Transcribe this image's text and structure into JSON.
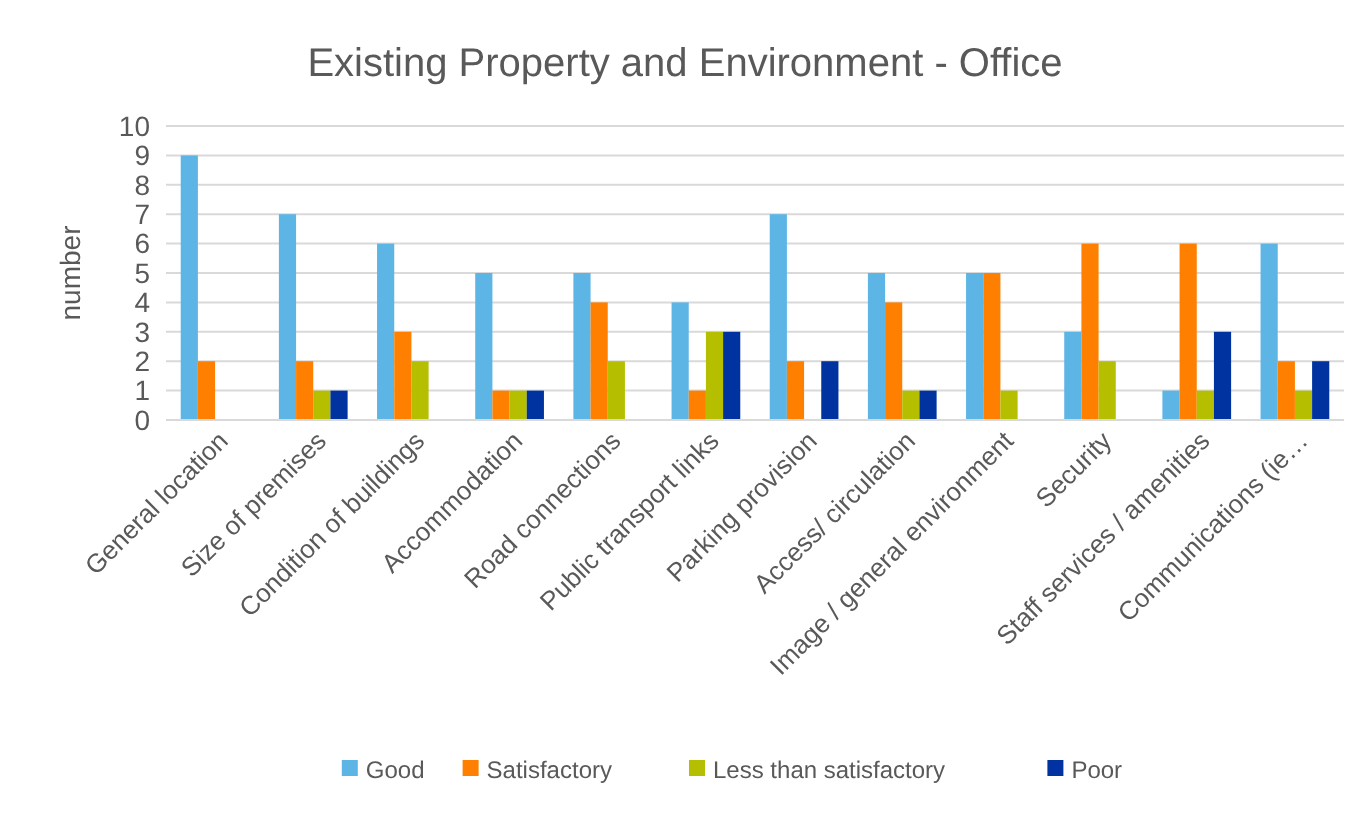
{
  "chart_data": {
    "type": "bar",
    "title": "Existing Property and Environment - Office",
    "ylabel": "number",
    "categories": [
      "General location",
      "Size of premises",
      "Condition of buildings",
      "Accommodation",
      "Road connections",
      "Public transport links",
      "Parking provision",
      "Access/ circulation",
      "Image / general environment",
      "Security",
      "Staff services / amenities",
      "Communications (ie…"
    ],
    "series": [
      {
        "name": "Good",
        "color": "#5db5e6",
        "values": [
          9,
          7,
          6,
          5,
          5,
          4,
          7,
          5,
          5,
          3,
          1,
          6
        ]
      },
      {
        "name": "Satisfactory",
        "color": "#ff8000",
        "values": [
          2,
          2,
          3,
          1,
          4,
          1,
          2,
          4,
          5,
          6,
          6,
          2
        ]
      },
      {
        "name": "Less than satisfactory",
        "color": "#b5bf00",
        "values": [
          0,
          1,
          2,
          1,
          2,
          3,
          0,
          1,
          1,
          2,
          1,
          1
        ]
      },
      {
        "name": "Poor",
        "color": "#0033a0",
        "values": [
          0,
          1,
          0,
          1,
          0,
          3,
          2,
          1,
          0,
          0,
          3,
          2
        ]
      }
    ],
    "ylim": [
      0,
      10
    ],
    "yticks": [
      0,
      1,
      2,
      3,
      4,
      5,
      6,
      7,
      8,
      9,
      10
    ],
    "grid": "y",
    "legend": "bottom"
  }
}
